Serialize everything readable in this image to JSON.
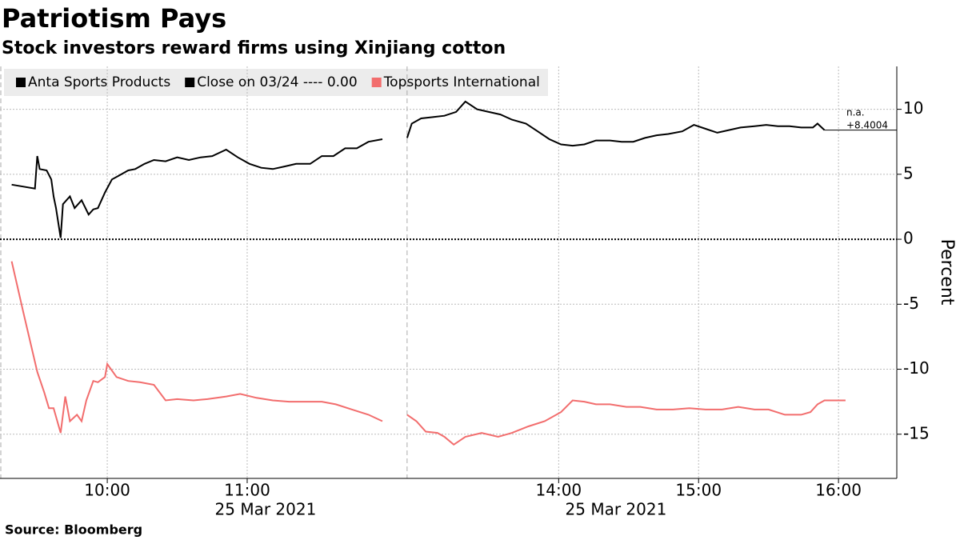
{
  "chart_data": {
    "type": "line",
    "title": "Patriotism Pays",
    "subtitle": "Stock investors reward firms using Xinjiang cotton",
    "y_label": "Percent",
    "source": "Source: Bloomberg",
    "xlim": [
      "09:14",
      "16:25"
    ],
    "x_break": [
      "12:00",
      "12:55"
    ],
    "xticks": [
      "10:00",
      "11:00",
      "14:00",
      "15:00",
      "16:00"
    ],
    "date_labels": [
      "25 Mar 2021",
      "25 Mar 2021"
    ],
    "ylim": [
      -18.4,
      13.3
    ],
    "yticks": [
      -15,
      -10,
      -5,
      0,
      5,
      10
    ],
    "grid": true,
    "legend": "top-left",
    "reference_line": {
      "label": "Close on 03/24 ---- 0.00",
      "value": 0,
      "color": "#000000"
    },
    "end_labels": [
      "n.a.",
      "+8.4004"
    ],
    "series": [
      {
        "name": "Anta Sports Products",
        "color": "#000000",
        "x": [
          "09:19",
          "09:29",
          "09:30",
          "09:31",
          "09:34",
          "09:36",
          "09:37",
          "09:38",
          "09:40",
          "09:41",
          "09:44",
          "09:46",
          "09:49",
          "09:52",
          "09:54",
          "09:56",
          "09:59",
          "10:02",
          "10:05",
          "10:09",
          "10:12",
          "10:16",
          "10:20",
          "10:25",
          "10:30",
          "10:35",
          "10:40",
          "10:45",
          "10:51",
          "10:56",
          "11:01",
          "11:06",
          "11:11",
          "11:16",
          "11:21",
          "11:27",
          "11:32",
          "11:37",
          "11:42",
          "11:47",
          "11:52",
          "11:58",
          "12:55",
          "12:57",
          "13:01",
          "13:06",
          "13:11",
          "13:16",
          "13:20",
          "13:25",
          "13:30",
          "13:35",
          "13:40",
          "13:46",
          "13:51",
          "13:56",
          "14:01",
          "14:06",
          "14:11",
          "14:16",
          "14:22",
          "14:27",
          "14:32",
          "14:37",
          "14:42",
          "14:47",
          "14:53",
          "14:58",
          "15:03",
          "15:08",
          "15:13",
          "15:18",
          "15:24",
          "15:29",
          "15:34",
          "15:39",
          "15:44",
          "15:49",
          "15:51",
          "15:54"
        ],
        "values": [
          4.2,
          3.9,
          6.4,
          5.4,
          5.3,
          4.6,
          3.3,
          2.4,
          0.1,
          2.7,
          3.3,
          2.4,
          3.0,
          1.9,
          2.3,
          2.4,
          3.6,
          4.6,
          4.9,
          5.3,
          5.4,
          5.8,
          6.1,
          6.0,
          6.3,
          6.1,
          6.3,
          6.4,
          6.9,
          6.3,
          5.8,
          5.5,
          5.4,
          5.6,
          5.8,
          5.8,
          6.4,
          6.4,
          7.0,
          7.0,
          7.5,
          7.7,
          7.8,
          8.9,
          9.3,
          9.4,
          9.5,
          9.8,
          10.6,
          10.0,
          9.8,
          9.6,
          9.2,
          8.9,
          8.3,
          7.7,
          7.3,
          7.2,
          7.3,
          7.6,
          7.6,
          7.5,
          7.5,
          7.8,
          8.0,
          8.1,
          8.3,
          8.8,
          8.5,
          8.2,
          8.4,
          8.6,
          8.7,
          8.8,
          8.7,
          8.7,
          8.6,
          8.6,
          8.9,
          8.4
        ]
      },
      {
        "name": "Topsports International",
        "color": "#f26d6d",
        "x": [
          "09:19",
          "09:24",
          "09:30",
          "09:33",
          "09:35",
          "09:37",
          "09:40",
          "09:42",
          "09:44",
          "09:47",
          "09:49",
          "09:51",
          "09:54",
          "09:56",
          "09:59",
          "10:00",
          "10:04",
          "10:09",
          "10:14",
          "10:20",
          "10:25",
          "10:30",
          "10:37",
          "10:43",
          "10:51",
          "10:57",
          "11:04",
          "11:11",
          "11:18",
          "11:25",
          "11:32",
          "11:38",
          "11:45",
          "11:52",
          "11:58",
          "12:55",
          "12:59",
          "13:03",
          "13:08",
          "13:11",
          "13:15",
          "13:20",
          "13:27",
          "13:34",
          "13:40",
          "13:47",
          "13:54",
          "14:01",
          "14:06",
          "14:11",
          "14:16",
          "14:22",
          "14:29",
          "14:35",
          "14:42",
          "14:49",
          "14:56",
          "15:03",
          "15:10",
          "15:17",
          "15:24",
          "15:30",
          "15:37",
          "15:44",
          "15:48",
          "15:51",
          "15:54",
          "16:03"
        ],
        "values": [
          -1.7,
          -5.6,
          -10.2,
          -11.8,
          -13.0,
          -13.0,
          -14.9,
          -12.1,
          -14.0,
          -13.5,
          -14.0,
          -12.4,
          -10.9,
          -11.0,
          -10.6,
          -9.6,
          -10.6,
          -10.9,
          -11.0,
          -11.2,
          -12.4,
          -12.3,
          -12.4,
          -12.3,
          -12.1,
          -11.9,
          -12.2,
          -12.4,
          -12.5,
          -12.5,
          -12.5,
          -12.7,
          -13.1,
          -13.5,
          -14.0,
          -13.5,
          -14.0,
          -14.8,
          -14.9,
          -15.2,
          -15.8,
          -15.2,
          -14.9,
          -15.2,
          -14.9,
          -14.4,
          -14.0,
          -13.3,
          -12.4,
          -12.5,
          -12.7,
          -12.7,
          -12.9,
          -12.9,
          -13.1,
          -13.1,
          -13.0,
          -13.1,
          -13.1,
          -12.9,
          -13.1,
          -13.1,
          -13.5,
          -13.5,
          -13.3,
          -12.7,
          -12.4,
          -12.4
        ]
      }
    ]
  }
}
